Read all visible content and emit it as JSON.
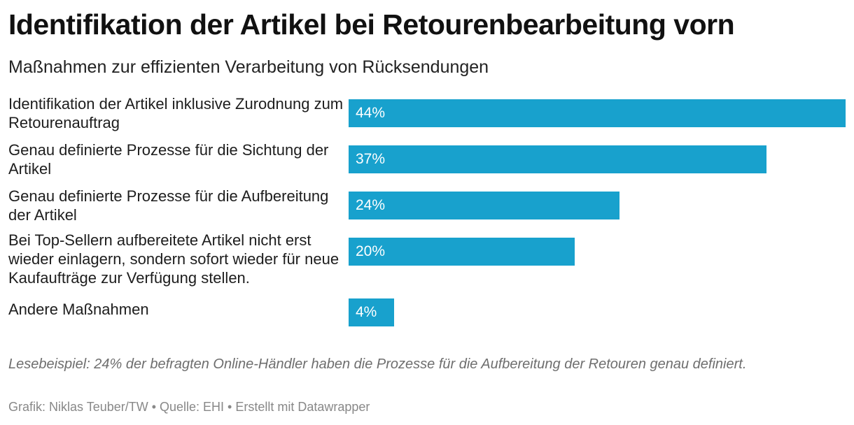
{
  "header": {
    "title": "Identifikation der Artikel bei Retourenbearbeitung vorn",
    "subtitle": "Maßnahmen zur effizienten Verarbeitung von Rücksendungen"
  },
  "chart_data": {
    "type": "bar",
    "orientation": "horizontal",
    "title": "Identifikation der Artikel bei Retourenbearbeitung vorn",
    "subtitle": "Maßnahmen zur effizienten Verarbeitung von Rücksendungen",
    "categories": [
      "Identifikation der Artikel inklusive Zurodnung zum Retourenauftrag",
      "Genau definierte Prozesse für die Sichtung der Artikel",
      "Genau definierte Prozesse für die Aufbereitung der Artikel",
      "Bei Top-Sellern aufbereitete Artikel nicht erst wieder einlagern, sondern sofort wieder für neue Kaufaufträge zur Verfügung stellen.",
      "Andere Maßnahmen"
    ],
    "values": [
      44,
      37,
      24,
      20,
      4
    ],
    "value_labels": [
      "44%",
      "37%",
      "24%",
      "20%",
      "4%"
    ],
    "unit": "%",
    "xlim": [
      0,
      44
    ],
    "bar_color": "#18a1cd",
    "grid": false
  },
  "footer": {
    "note": "Lesebeispiel: 24% der befragten Online-Händler haben die Prozesse für die Aufbereitung der Retouren genau definiert.",
    "source": "Grafik: Niklas Teuber/TW • Quelle: EHI • Erstellt mit Datawrapper"
  }
}
